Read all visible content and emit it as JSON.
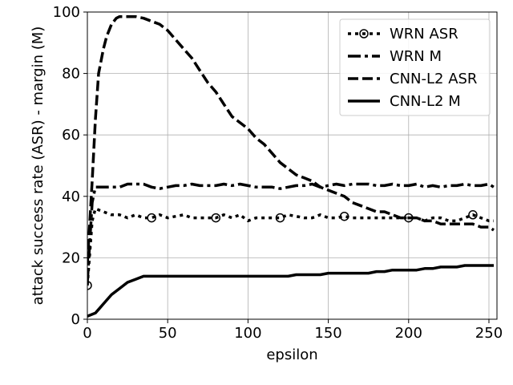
{
  "chart_data": {
    "type": "line",
    "title": "",
    "xlabel": "epsilon",
    "ylabel": "attack success rate (ASR) - margin (M)",
    "xlim": [
      0,
      255
    ],
    "ylim": [
      0,
      100
    ],
    "xticks": [
      0,
      50,
      100,
      150,
      200,
      250
    ],
    "yticks": [
      0,
      20,
      40,
      60,
      80,
      100
    ],
    "grid": true,
    "legend": "top-right",
    "series": [
      {
        "name": "WRN ASR",
        "style": "dotted-circle",
        "color": "#000000",
        "x": [
          0,
          3,
          5,
          10,
          15,
          20,
          25,
          30,
          35,
          40,
          45,
          50,
          55,
          60,
          65,
          70,
          75,
          80,
          85,
          90,
          95,
          100,
          105,
          110,
          115,
          120,
          125,
          130,
          135,
          140,
          145,
          150,
          155,
          160,
          165,
          170,
          175,
          180,
          185,
          190,
          195,
          200,
          205,
          210,
          215,
          220,
          225,
          230,
          235,
          240,
          245,
          250,
          253
        ],
        "y": [
          11,
          32,
          36,
          35,
          34,
          34,
          33,
          34,
          33,
          33,
          34,
          33,
          33.5,
          34,
          33,
          33,
          33,
          33,
          34,
          33,
          34,
          32,
          33,
          33,
          33,
          33,
          34,
          33.5,
          33,
          33,
          34,
          33,
          33,
          33.5,
          33,
          33,
          33,
          33,
          33,
          33,
          33,
          33,
          33,
          32,
          33,
          33,
          32,
          32,
          33,
          34,
          33,
          32,
          32
        ]
      },
      {
        "name": "WRN M",
        "style": "dashdot",
        "color": "#000000",
        "x": [
          0,
          3,
          5,
          10,
          15,
          20,
          25,
          30,
          35,
          40,
          45,
          50,
          55,
          60,
          65,
          70,
          75,
          80,
          85,
          90,
          95,
          100,
          105,
          110,
          115,
          120,
          125,
          130,
          135,
          140,
          145,
          150,
          155,
          160,
          165,
          170,
          175,
          180,
          185,
          190,
          195,
          200,
          205,
          210,
          215,
          220,
          225,
          230,
          235,
          240,
          245,
          250,
          253
        ],
        "y": [
          12,
          38,
          43,
          43,
          43,
          43,
          44,
          44,
          44,
          43,
          42.5,
          43,
          43.5,
          43.5,
          44,
          43.5,
          43.5,
          43.5,
          44,
          43.5,
          44,
          43.5,
          43,
          43,
          43,
          42.5,
          43,
          43.5,
          43.5,
          44,
          43,
          43.5,
          44,
          43.5,
          44,
          44,
          44,
          43.5,
          43.5,
          44,
          43.5,
          43.5,
          44,
          43,
          43.5,
          43,
          43.5,
          43.5,
          44,
          43.5,
          43.5,
          44,
          43
        ]
      },
      {
        "name": "CNN-L2 ASR",
        "style": "dashed",
        "color": "#000000",
        "x": [
          0,
          3,
          5,
          7,
          10,
          12,
          15,
          18,
          20,
          25,
          30,
          35,
          40,
          45,
          50,
          55,
          60,
          65,
          70,
          75,
          80,
          85,
          90,
          95,
          100,
          105,
          110,
          115,
          120,
          125,
          130,
          135,
          140,
          145,
          150,
          155,
          160,
          165,
          170,
          175,
          180,
          185,
          190,
          195,
          200,
          205,
          210,
          215,
          220,
          225,
          230,
          235,
          240,
          245,
          250,
          253
        ],
        "y": [
          18,
          45,
          65,
          80,
          88,
          92,
          96,
          98,
          98.5,
          98.5,
          98.5,
          98,
          97,
          96,
          94,
          91,
          88,
          85,
          81,
          77,
          74,
          70,
          66,
          64,
          62,
          59,
          57,
          54,
          51,
          49,
          47,
          46,
          45,
          43,
          42,
          41,
          40,
          38,
          37,
          36,
          35,
          35,
          34,
          33,
          33,
          33,
          32,
          32,
          31,
          31,
          31,
          31,
          31,
          30,
          30,
          29
        ]
      },
      {
        "name": "CNN-L2 M",
        "style": "solid",
        "color": "#000000",
        "x": [
          0,
          5,
          10,
          15,
          20,
          25,
          30,
          35,
          40,
          45,
          50,
          55,
          60,
          65,
          70,
          75,
          80,
          85,
          90,
          95,
          100,
          105,
          110,
          115,
          120,
          125,
          130,
          135,
          140,
          145,
          150,
          155,
          160,
          165,
          170,
          175,
          180,
          185,
          190,
          195,
          200,
          205,
          210,
          215,
          220,
          225,
          230,
          235,
          240,
          245,
          250,
          253
        ],
        "y": [
          1,
          2,
          5,
          8,
          10,
          12,
          13,
          14,
          14,
          14,
          14,
          14,
          14,
          14,
          14,
          14,
          14,
          14,
          14,
          14,
          14,
          14,
          14,
          14,
          14,
          14,
          14.5,
          14.5,
          14.5,
          14.5,
          15,
          15,
          15,
          15,
          15,
          15,
          15.5,
          15.5,
          16,
          16,
          16,
          16,
          16.5,
          16.5,
          17,
          17,
          17,
          17.5,
          17.5,
          17.5,
          17.5,
          17.5
        ]
      }
    ]
  }
}
